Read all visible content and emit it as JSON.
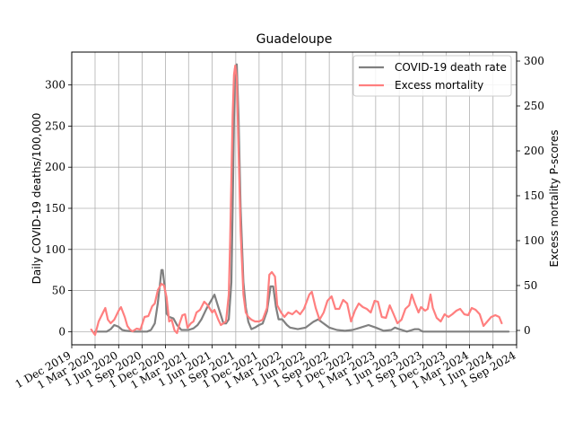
{
  "chart_data": {
    "type": "line",
    "title": "Guadeloupe",
    "ylabel_left": "Daily COVID-19 deaths/100,000",
    "ylabel_right": "Excess mortality P-scores",
    "left_ylim": [
      -16,
      340
    ],
    "right_ylim": [
      -16,
      310
    ],
    "left_yticks": [
      0,
      50,
      100,
      150,
      200,
      250,
      300
    ],
    "right_yticks": [
      0,
      50,
      100,
      150,
      200,
      250,
      300
    ],
    "xlim": [
      "2019-12-01",
      "2024-09-01"
    ],
    "xticks": [
      "2019-12-01",
      "2020-03-01",
      "2020-06-01",
      "2020-09-01",
      "2020-12-01",
      "2021-03-01",
      "2021-06-01",
      "2021-09-01",
      "2021-12-01",
      "2022-03-01",
      "2022-06-01",
      "2022-09-01",
      "2022-12-01",
      "2023-03-01",
      "2023-06-01",
      "2023-09-01",
      "2023-12-01",
      "2024-03-01",
      "2024-06-01",
      "2024-09-01"
    ],
    "xtick_labels": [
      "1 Dec 2019",
      "1 Mar 2020",
      "1 Jun 2020",
      "1 Sep 2020",
      "1 Dec 2020",
      "1 Mar 2021",
      "1 Jun 2021",
      "1 Sep 2021",
      "1 Dec 2021",
      "1 Mar 2022",
      "1 Jun 2022",
      "1 Sep 2022",
      "1 Dec 2022",
      "1 Mar 2023",
      "1 Jun 2023",
      "1 Sep 2023",
      "1 Dec 2023",
      "1 Mar 2024",
      "1 Jun 2024",
      "1 Sep 2024"
    ],
    "grid": true,
    "legend_position": "top-right",
    "series": [
      {
        "name": "COVID-19 death rate",
        "axis": "left",
        "color": "#808080",
        "points": [
          [
            "2020-03-01",
            0
          ],
          [
            "2020-04-15",
            0
          ],
          [
            "2020-05-01",
            3
          ],
          [
            "2020-05-15",
            8
          ],
          [
            "2020-06-01",
            6
          ],
          [
            "2020-06-15",
            2
          ],
          [
            "2020-07-01",
            1
          ],
          [
            "2020-08-01",
            0
          ],
          [
            "2020-09-01",
            0
          ],
          [
            "2020-09-20",
            0
          ],
          [
            "2020-10-05",
            2
          ],
          [
            "2020-10-20",
            10
          ],
          [
            "2020-11-01",
            35
          ],
          [
            "2020-11-10",
            60
          ],
          [
            "2020-11-15",
            75
          ],
          [
            "2020-11-20",
            75
          ],
          [
            "2020-12-01",
            45
          ],
          [
            "2020-12-05",
            22
          ],
          [
            "2020-12-15",
            18
          ],
          [
            "2021-01-01",
            16
          ],
          [
            "2021-01-15",
            8
          ],
          [
            "2021-02-01",
            2
          ],
          [
            "2021-03-01",
            2
          ],
          [
            "2021-03-20",
            4
          ],
          [
            "2021-04-05",
            8
          ],
          [
            "2021-04-20",
            15
          ],
          [
            "2021-05-10",
            28
          ],
          [
            "2021-06-01",
            40
          ],
          [
            "2021-06-10",
            45
          ],
          [
            "2021-06-25",
            30
          ],
          [
            "2021-07-05",
            20
          ],
          [
            "2021-07-15",
            10
          ],
          [
            "2021-07-25",
            10
          ],
          [
            "2021-08-05",
            15
          ],
          [
            "2021-08-15",
            60
          ],
          [
            "2021-08-20",
            150
          ],
          [
            "2021-08-25",
            260
          ],
          [
            "2021-08-29",
            320
          ],
          [
            "2021-09-05",
            325
          ],
          [
            "2021-09-12",
            260
          ],
          [
            "2021-09-20",
            150
          ],
          [
            "2021-10-01",
            60
          ],
          [
            "2021-10-10",
            30
          ],
          [
            "2021-10-20",
            12
          ],
          [
            "2021-11-01",
            3
          ],
          [
            "2021-11-15",
            5
          ],
          [
            "2021-12-01",
            8
          ],
          [
            "2021-12-15",
            10
          ],
          [
            "2022-01-01",
            25
          ],
          [
            "2022-01-15",
            55
          ],
          [
            "2022-01-25",
            55
          ],
          [
            "2022-02-05",
            30
          ],
          [
            "2022-02-15",
            15
          ],
          [
            "2022-03-01",
            15
          ],
          [
            "2022-03-20",
            8
          ],
          [
            "2022-04-01",
            5
          ],
          [
            "2022-05-01",
            3
          ],
          [
            "2022-06-01",
            5
          ],
          [
            "2022-07-01",
            12
          ],
          [
            "2022-07-20",
            15
          ],
          [
            "2022-08-01",
            12
          ],
          [
            "2022-09-01",
            5
          ],
          [
            "2022-10-01",
            2
          ],
          [
            "2022-11-01",
            1
          ],
          [
            "2022-12-01",
            2
          ],
          [
            "2023-01-01",
            5
          ],
          [
            "2023-02-01",
            8
          ],
          [
            "2023-03-01",
            5
          ],
          [
            "2023-04-01",
            1
          ],
          [
            "2023-05-01",
            2
          ],
          [
            "2023-05-15",
            5
          ],
          [
            "2023-06-01",
            3
          ],
          [
            "2023-07-01",
            0
          ],
          [
            "2023-08-01",
            3
          ],
          [
            "2023-08-15",
            3
          ],
          [
            "2023-09-01",
            0
          ],
          [
            "2024-08-01",
            0
          ]
        ]
      },
      {
        "name": "Excess mortality",
        "axis": "right",
        "color": "#ff7f7f",
        "points": [
          [
            "2020-02-15",
            1
          ],
          [
            "2020-03-01",
            -5
          ],
          [
            "2020-03-15",
            10
          ],
          [
            "2020-04-01",
            20
          ],
          [
            "2020-04-10",
            25
          ],
          [
            "2020-04-20",
            12
          ],
          [
            "2020-05-01",
            8
          ],
          [
            "2020-05-15",
            12
          ],
          [
            "2020-06-01",
            22
          ],
          [
            "2020-06-10",
            26
          ],
          [
            "2020-06-25",
            15
          ],
          [
            "2020-07-05",
            5
          ],
          [
            "2020-07-15",
            1
          ],
          [
            "2020-07-25",
            -1
          ],
          [
            "2020-08-10",
            2
          ],
          [
            "2020-08-25",
            1
          ],
          [
            "2020-09-10",
            15
          ],
          [
            "2020-09-25",
            16
          ],
          [
            "2020-10-10",
            27
          ],
          [
            "2020-10-20",
            30
          ],
          [
            "2020-11-01",
            45
          ],
          [
            "2020-11-15",
            52
          ],
          [
            "2020-11-25",
            50
          ],
          [
            "2020-12-05",
            37
          ],
          [
            "2020-12-15",
            10
          ],
          [
            "2020-12-25",
            12
          ],
          [
            "2021-01-05",
            0
          ],
          [
            "2021-01-15",
            -3
          ],
          [
            "2021-01-25",
            8
          ],
          [
            "2021-02-05",
            17
          ],
          [
            "2021-02-15",
            18
          ],
          [
            "2021-02-25",
            3
          ],
          [
            "2021-03-10",
            8
          ],
          [
            "2021-03-20",
            10
          ],
          [
            "2021-04-01",
            20
          ],
          [
            "2021-04-15",
            23
          ],
          [
            "2021-05-01",
            32
          ],
          [
            "2021-05-15",
            28
          ],
          [
            "2021-06-01",
            20
          ],
          [
            "2021-06-10",
            23
          ],
          [
            "2021-06-25",
            12
          ],
          [
            "2021-07-05",
            6
          ],
          [
            "2021-07-15",
            8
          ],
          [
            "2021-07-25",
            10
          ],
          [
            "2021-08-05",
            40
          ],
          [
            "2021-08-10",
            100
          ],
          [
            "2021-08-15",
            170
          ],
          [
            "2021-08-20",
            240
          ],
          [
            "2021-08-25",
            285
          ],
          [
            "2021-08-30",
            295
          ],
          [
            "2021-09-05",
            280
          ],
          [
            "2021-09-12",
            200
          ],
          [
            "2021-09-20",
            110
          ],
          [
            "2021-10-01",
            40
          ],
          [
            "2021-10-10",
            20
          ],
          [
            "2021-10-20",
            15
          ],
          [
            "2021-11-01",
            12
          ],
          [
            "2021-11-15",
            10
          ],
          [
            "2021-12-01",
            10
          ],
          [
            "2021-12-15",
            12
          ],
          [
            "2022-01-01",
            25
          ],
          [
            "2022-01-10",
            62
          ],
          [
            "2022-01-20",
            65
          ],
          [
            "2022-02-01",
            60
          ],
          [
            "2022-02-10",
            28
          ],
          [
            "2022-02-25",
            20
          ],
          [
            "2022-03-10",
            15
          ],
          [
            "2022-03-25",
            20
          ],
          [
            "2022-04-10",
            18
          ],
          [
            "2022-04-25",
            22
          ],
          [
            "2022-05-10",
            18
          ],
          [
            "2022-05-25",
            24
          ],
          [
            "2022-06-15",
            40
          ],
          [
            "2022-06-25",
            43
          ],
          [
            "2022-07-10",
            25
          ],
          [
            "2022-07-25",
            12
          ],
          [
            "2022-08-10",
            20
          ],
          [
            "2022-08-25",
            33
          ],
          [
            "2022-09-10",
            38
          ],
          [
            "2022-09-25",
            24
          ],
          [
            "2022-10-10",
            24
          ],
          [
            "2022-10-25",
            34
          ],
          [
            "2022-11-10",
            30
          ],
          [
            "2022-11-25",
            10
          ],
          [
            "2022-12-10",
            22
          ],
          [
            "2022-12-25",
            30
          ],
          [
            "2023-01-10",
            26
          ],
          [
            "2023-01-25",
            24
          ],
          [
            "2023-02-10",
            20
          ],
          [
            "2023-02-25",
            33
          ],
          [
            "2023-03-10",
            32
          ],
          [
            "2023-03-25",
            15
          ],
          [
            "2023-04-10",
            14
          ],
          [
            "2023-04-25",
            28
          ],
          [
            "2023-05-10",
            18
          ],
          [
            "2023-05-25",
            8
          ],
          [
            "2023-06-10",
            12
          ],
          [
            "2023-06-25",
            24
          ],
          [
            "2023-07-10",
            28
          ],
          [
            "2023-07-20",
            40
          ],
          [
            "2023-08-01",
            30
          ],
          [
            "2023-08-15",
            20
          ],
          [
            "2023-08-25",
            26
          ],
          [
            "2023-09-10",
            22
          ],
          [
            "2023-09-20",
            24
          ],
          [
            "2023-10-01",
            40
          ],
          [
            "2023-10-10",
            25
          ],
          [
            "2023-10-25",
            14
          ],
          [
            "2023-11-10",
            10
          ],
          [
            "2023-11-25",
            18
          ],
          [
            "2023-12-10",
            15
          ],
          [
            "2023-12-25",
            18
          ],
          [
            "2024-01-10",
            22
          ],
          [
            "2024-01-25",
            24
          ],
          [
            "2024-02-10",
            18
          ],
          [
            "2024-02-25",
            17
          ],
          [
            "2024-03-10",
            25
          ],
          [
            "2024-03-25",
            23
          ],
          [
            "2024-04-10",
            18
          ],
          [
            "2024-04-25",
            5
          ],
          [
            "2024-05-10",
            10
          ],
          [
            "2024-05-25",
            15
          ],
          [
            "2024-06-10",
            17
          ],
          [
            "2024-06-25",
            15
          ],
          [
            "2024-07-05",
            8
          ]
        ]
      }
    ]
  }
}
